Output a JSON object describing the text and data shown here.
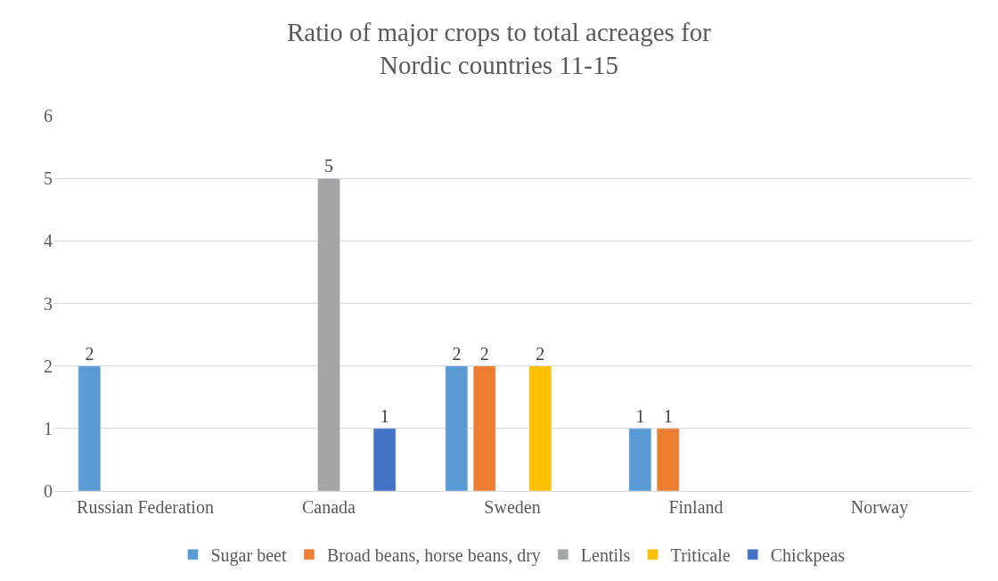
{
  "chart_data": {
    "type": "bar",
    "title": "Ratio of major crops to total acreages for\nNordic countries 11-15",
    "categories": [
      "Russian Federation",
      "Canada",
      "Sweden",
      "Finland",
      "Norway"
    ],
    "series": [
      {
        "name": "Sugar beet",
        "color": "#5b9bd5",
        "values": [
          2,
          null,
          2,
          1,
          null
        ]
      },
      {
        "name": "Broad beans, horse beans, dry",
        "color": "#ed7d31",
        "values": [
          null,
          null,
          2,
          1,
          null
        ]
      },
      {
        "name": "Lentils",
        "color": "#a5a5a5",
        "values": [
          null,
          5,
          null,
          null,
          null
        ]
      },
      {
        "name": "Triticale",
        "color": "#ffc000",
        "values": [
          null,
          null,
          2,
          null,
          null
        ]
      },
      {
        "name": "Chickpeas",
        "color": "#4472c4",
        "values": [
          null,
          1,
          null,
          null,
          null
        ]
      }
    ],
    "ylim": [
      0,
      6
    ],
    "yticks": [
      0,
      1,
      2,
      3,
      4,
      5,
      6
    ],
    "grid": "y",
    "legend": "bottom",
    "data_labels": true
  }
}
